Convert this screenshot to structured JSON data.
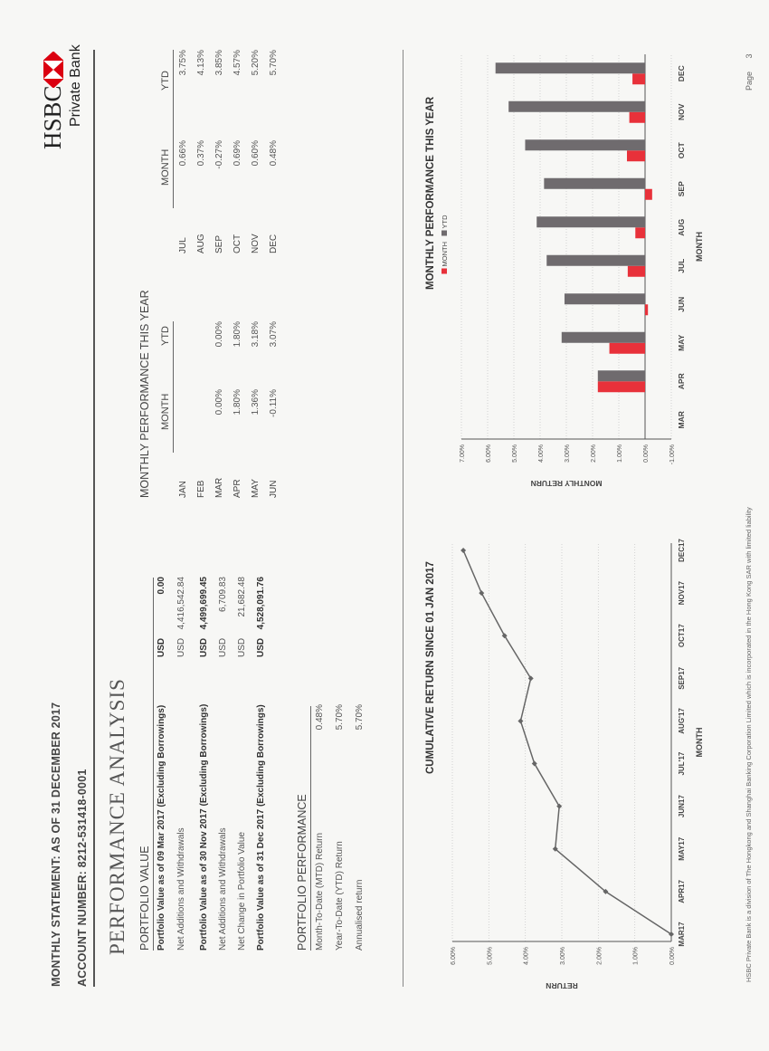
{
  "header": {
    "statement": "MONTHLY STATEMENT: AS OF 31 DECEMBER 2017",
    "account": "ACCOUNT NUMBER: 8212-531418-0001"
  },
  "brand": {
    "name": "HSBC",
    "division": "Private Bank",
    "accent": "#db0011"
  },
  "section_title": "PERFORMANCE ANALYSIS",
  "portfolio_value": {
    "title": "PORTFOLIO VALUE",
    "rows": [
      {
        "label": "Portfolio Value as of 09 Mar 2017 (Excluding Borrowings)",
        "ccy": "USD",
        "value": "0.00",
        "bold": true
      },
      {
        "label": "Net Additions and Withdrawals",
        "ccy": "USD",
        "value": "4,416,542.84",
        "bold": false
      },
      {
        "label": "Portfolio Value as of 30 Nov 2017 (Excluding Borrowings)",
        "ccy": "USD",
        "value": "4,499,699.45",
        "bold": true
      },
      {
        "label": "Net Additions and Withdrawals",
        "ccy": "USD",
        "value": "6,709.83",
        "bold": false
      },
      {
        "label": "Net Change in Portfolio Value",
        "ccy": "USD",
        "value": "21,682.48",
        "bold": false
      },
      {
        "label": "Portfolio Value as of 31 Dec 2017 (Excluding Borrowings)",
        "ccy": "USD",
        "value": "4,528,091.76",
        "bold": true
      }
    ]
  },
  "portfolio_performance": {
    "title": "PORTFOLIO PERFORMANCE",
    "rows": [
      {
        "label": "Month-To-Date (MTD) Return",
        "value": "0.48%"
      },
      {
        "label": "Year-To-Date (YTD) Return",
        "value": "5.70%"
      },
      {
        "label": "Annualised return",
        "value": "5.70%"
      }
    ]
  },
  "monthly_table": {
    "title": "MONTHLY PERFORMANCE THIS YEAR",
    "col_month": "MONTH",
    "col_ytd": "YTD",
    "left": [
      {
        "m": "JAN",
        "month": "",
        "ytd": ""
      },
      {
        "m": "FEB",
        "month": "",
        "ytd": ""
      },
      {
        "m": "MAR",
        "month": "0.00%",
        "ytd": "0.00%"
      },
      {
        "m": "APR",
        "month": "1.80%",
        "ytd": "1.80%"
      },
      {
        "m": "MAY",
        "month": "1.36%",
        "ytd": "3.18%"
      },
      {
        "m": "JUN",
        "month": "-0.11%",
        "ytd": "3.07%"
      }
    ],
    "right": [
      {
        "m": "JUL",
        "month": "0.66%",
        "ytd": "3.75%"
      },
      {
        "m": "AUG",
        "month": "0.37%",
        "ytd": "4.13%"
      },
      {
        "m": "SEP",
        "month": "-0.27%",
        "ytd": "3.85%"
      },
      {
        "m": "OCT",
        "month": "0.69%",
        "ytd": "4.57%"
      },
      {
        "m": "NOV",
        "month": "0.60%",
        "ytd": "5.20%"
      },
      {
        "m": "DEC",
        "month": "0.48%",
        "ytd": "5.70%"
      }
    ]
  },
  "chart_data": [
    {
      "type": "line",
      "title": "CUMULATIVE RETURN SINCE 01 JAN 2017",
      "xlabel": "MONTH",
      "ylabel": "RETURN",
      "categories": [
        "MAR17",
        "APR17",
        "MAY17",
        "JUN17",
        "JUL'17",
        "AUG'17",
        "SEP17",
        "OCT17",
        "NOV17",
        "DEC17"
      ],
      "values": [
        0.0,
        1.8,
        3.18,
        3.07,
        3.75,
        4.13,
        3.85,
        4.57,
        5.2,
        5.7
      ],
      "ylim": [
        0,
        6
      ],
      "yticks": [
        "0.00%",
        "1.00%",
        "2.00%",
        "3.00%",
        "4.00%",
        "5.00%",
        "6.00%"
      ],
      "grid": true,
      "color": "#666666"
    },
    {
      "type": "bar",
      "title": "MONTHLY PERFORMANCE THIS YEAR",
      "xlabel": "MONTH",
      "ylabel": "MONTHLY RETURN",
      "categories": [
        "MAR",
        "APR",
        "MAY",
        "JUN",
        "JUL",
        "AUG",
        "SEP",
        "OCT",
        "NOV",
        "DEC"
      ],
      "series": [
        {
          "name": "MONTH",
          "color": "#e8313a",
          "values": [
            0.0,
            1.8,
            1.36,
            -0.11,
            0.66,
            0.37,
            -0.27,
            0.69,
            0.6,
            0.48
          ]
        },
        {
          "name": "YTD",
          "color": "#6f6b6e",
          "values": [
            0.0,
            1.8,
            3.18,
            3.07,
            3.75,
            4.13,
            3.85,
            4.57,
            5.2,
            5.7
          ]
        }
      ],
      "ylim": [
        -1,
        7
      ],
      "yticks": [
        "-1.00%",
        "0.00%",
        "1.00%",
        "2.00%",
        "3.00%",
        "4.00%",
        "5.00%",
        "6.00%",
        "7.00%"
      ],
      "legend_position": "top",
      "grid": true
    }
  ],
  "footer": {
    "note": "HSBC Private Bank is a division of The Hongkong and Shanghai Banking Corporation Limited which is incorporated in the Hong Kong SAR with limited liability",
    "page_label": "Page",
    "page_number": "3"
  }
}
